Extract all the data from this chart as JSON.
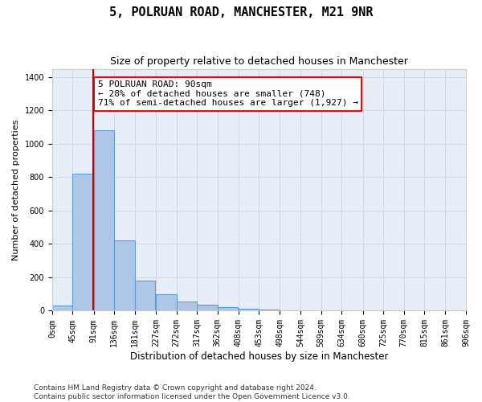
{
  "title": "5, POLRUAN ROAD, MANCHESTER, M21 9NR",
  "subtitle": "Size of property relative to detached houses in Manchester",
  "xlabel": "Distribution of detached houses by size in Manchester",
  "ylabel": "Number of detached properties",
  "bar_color": "#aec6e8",
  "bar_edge_color": "#5a9fd4",
  "bar_heights": [
    30,
    820,
    1080,
    420,
    180,
    100,
    55,
    35,
    20,
    10,
    5,
    3,
    2,
    1,
    0,
    0,
    0,
    0,
    0,
    0
  ],
  "bin_edges": [
    0,
    45,
    91,
    136,
    181,
    227,
    272,
    317,
    362,
    408,
    453,
    498,
    544,
    589,
    634,
    680,
    725,
    770,
    815,
    861,
    906
  ],
  "x_tick_labels": [
    "0sqm",
    "45sqm",
    "91sqm",
    "136sqm",
    "181sqm",
    "227sqm",
    "272sqm",
    "317sqm",
    "362sqm",
    "408sqm",
    "453sqm",
    "498sqm",
    "544sqm",
    "589sqm",
    "634sqm",
    "680sqm",
    "725sqm",
    "770sqm",
    "815sqm",
    "861sqm",
    "906sqm"
  ],
  "ylim": [
    0,
    1450
  ],
  "red_line_x": 90,
  "annotation_text": "5 POLRUAN ROAD: 90sqm\n← 28% of detached houses are smaller (748)\n71% of semi-detached houses are larger (1,927) →",
  "annotation_box_color": "white",
  "annotation_box_edge_color": "red",
  "red_line_color": "#cc0000",
  "grid_color": "#d0d8e8",
  "background_color": "#e8eef8",
  "footer_text": "Contains HM Land Registry data © Crown copyright and database right 2024.\nContains public sector information licensed under the Open Government Licence v3.0.",
  "title_fontsize": 11,
  "subtitle_fontsize": 9,
  "axis_label_fontsize": 8.5,
  "tick_label_fontsize": 7,
  "annotation_fontsize": 8,
  "ylabel_fontsize": 8
}
